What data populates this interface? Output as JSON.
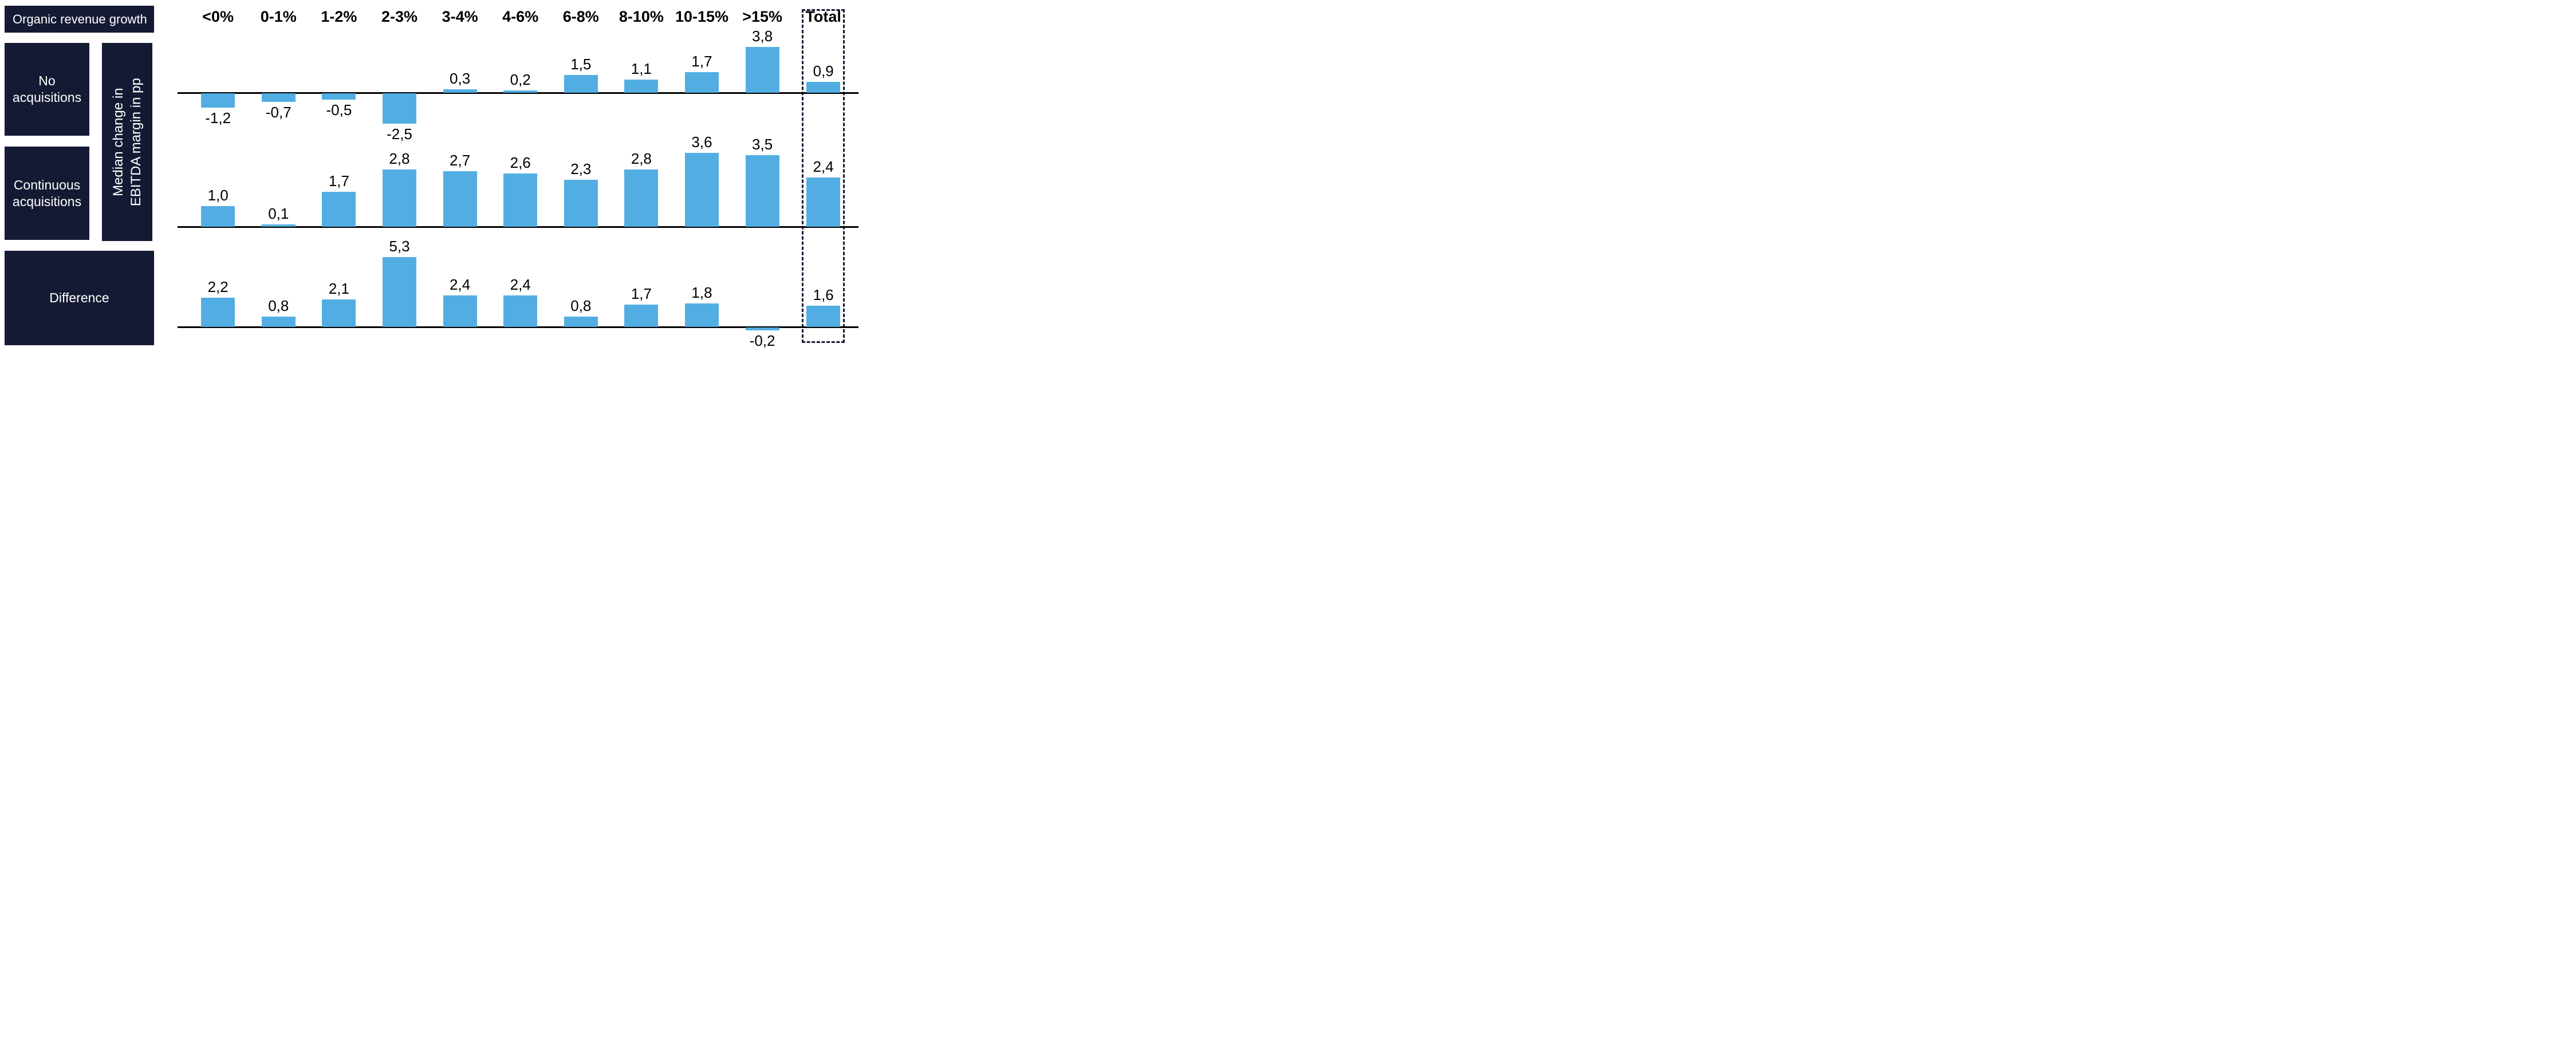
{
  "page": {
    "background": "#FFFFFF"
  },
  "sidebar": {
    "corner_label": "Organic revenue growth",
    "row_labels": [
      "No acquisitions",
      "Continuous acquisitions",
      "Difference"
    ],
    "axis_label_line1": "Median change in",
    "axis_label_line2": "EBITDA margin in pp"
  },
  "chart_data": {
    "type": "bar",
    "title": "Organic revenue growth",
    "ylabel": "Median change in EBITDA margin in pp",
    "decimal_separator": ",",
    "value_unit": "pp",
    "grid": "off",
    "legend": "none",
    "categories": [
      "<0%",
      "0-1%",
      "1-2%",
      "2-3%",
      "3-4%",
      "4-6%",
      "6-8%",
      "8-10%",
      "10-15%",
      ">15%"
    ],
    "total_label": "Total",
    "series": [
      {
        "name": "No acquisitions",
        "values": [
          -1.2,
          -0.7,
          -0.5,
          -2.5,
          0.3,
          0.2,
          1.5,
          1.1,
          1.7,
          3.8
        ],
        "total": 0.9
      },
      {
        "name": "Continuous acquisitions",
        "values": [
          1.0,
          0.1,
          1.7,
          2.8,
          2.7,
          2.6,
          2.3,
          2.8,
          3.6,
          3.5
        ],
        "total": 2.4
      },
      {
        "name": "Difference",
        "values": [
          2.2,
          0.8,
          2.1,
          5.3,
          2.4,
          2.4,
          0.8,
          1.7,
          1.8,
          -0.2
        ],
        "total": 1.6
      }
    ],
    "colors": {
      "bar": "#52AEE2",
      "box_navy": "#141A33",
      "axis": "#000000",
      "label_text": "#000000",
      "box_text": "#FFFFFF"
    }
  }
}
